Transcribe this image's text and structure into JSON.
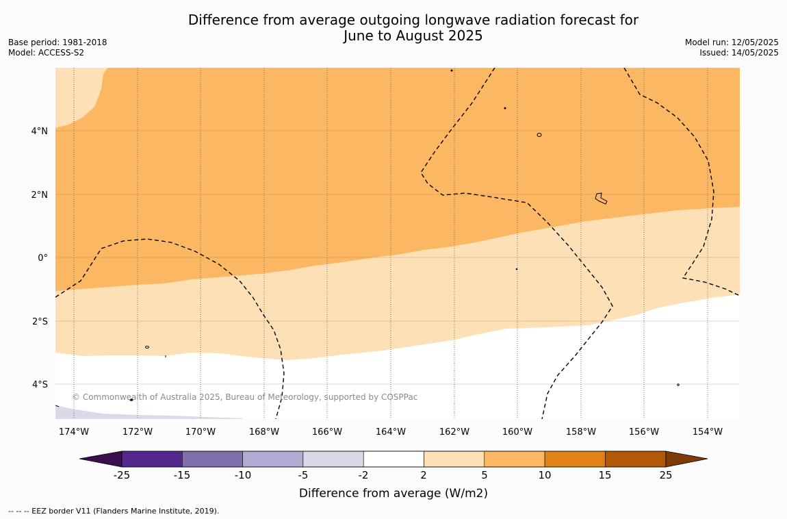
{
  "title_line1": "Difference from average outgoing longwave radiation forecast for",
  "title_line2": "June to August 2025",
  "meta_left": {
    "base_period": "Base period: 1981-2018",
    "model": "Model: ACCESS-S2"
  },
  "meta_right": {
    "model_run": "Model run: 12/05/2025",
    "issued": "Issued: 14/05/2025"
  },
  "lon_ticks": [
    "174°W",
    "172°W",
    "170°W",
    "168°W",
    "166°W",
    "164°W",
    "162°W",
    "160°W",
    "158°W",
    "156°W",
    "154°W"
  ],
  "lat_ticks": [
    "4°N",
    "2°N",
    "0°",
    "2°S",
    "4°S"
  ],
  "copyright": "© Commonwealth of Australia 2025, Bureau of Meteorology, supported by COSPPac",
  "colorbar": {
    "ticks": [
      "-25",
      "-15",
      "-10",
      "-5",
      "-2",
      "2",
      "5",
      "10",
      "15",
      "25"
    ],
    "colors": [
      "#3b0f4f",
      "#54278f",
      "#7f6fad",
      "#b2abd4",
      "#d9d9ea",
      "#ffffff",
      "#fde0b6",
      "#fbb762",
      "#e08214",
      "#b35807",
      "#7f3b08"
    ],
    "title": "Difference from average (W/m2)"
  },
  "legend_note": "--  --  -- EEZ border V11 (Flanders Marine Institute, 2019)."
}
